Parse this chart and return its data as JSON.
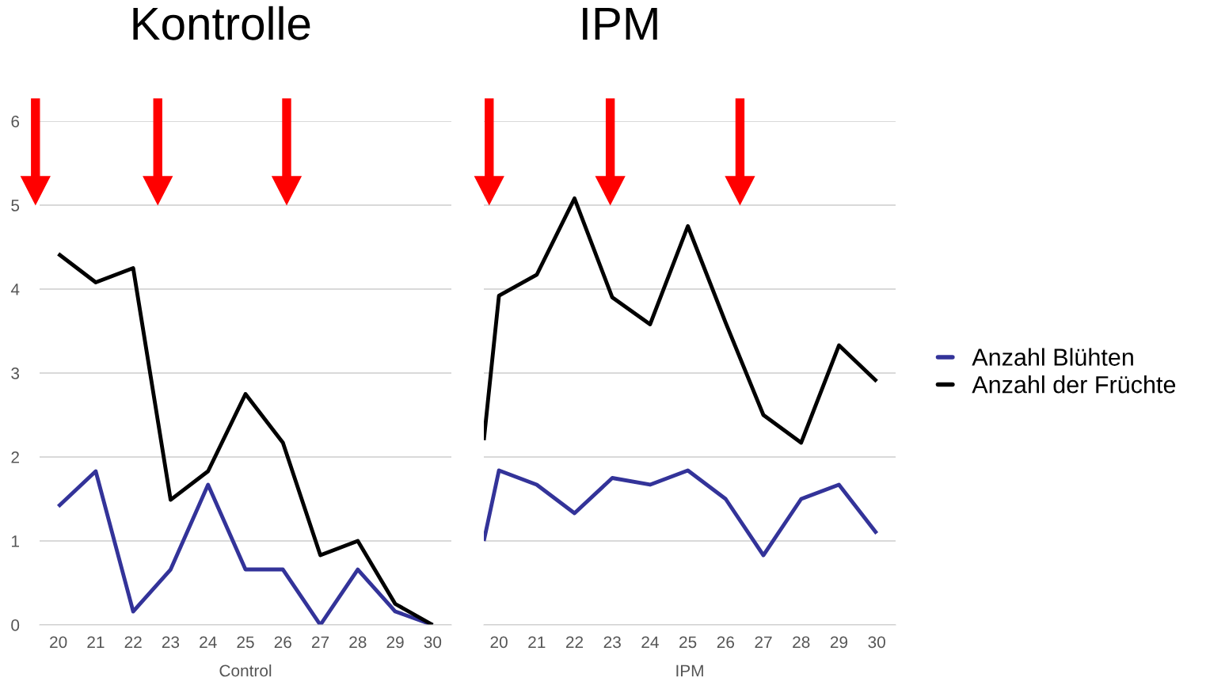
{
  "chart_data": [
    {
      "type": "line",
      "title": "Kontrolle",
      "xlabel": "Control",
      "xlim": [
        19.5,
        30.5
      ],
      "xticks": [
        20,
        21,
        22,
        23,
        24,
        25,
        26,
        27,
        28,
        29,
        30
      ],
      "ylim": [
        0,
        6
      ],
      "yticks": [
        0,
        1,
        2,
        3,
        4,
        5,
        6
      ],
      "grid": "y",
      "legend": false,
      "x": [
        20,
        21,
        22,
        23,
        24,
        25,
        26,
        27,
        28,
        29,
        30
      ],
      "series": [
        {
          "color": "#333399",
          "values": [
            1.41,
            1.83,
            0.16,
            0.66,
            1.67,
            0.66,
            0.66,
            0,
            0.66,
            0.16,
            0
          ]
        },
        {
          "color": "#000000",
          "values": [
            4.42,
            4.08,
            4.25,
            1.49,
            1.83,
            2.75,
            2.17,
            0.83,
            1.0,
            0.25,
            0
          ]
        }
      ]
    },
    {
      "type": "line",
      "title": "IPM",
      "xlabel": "IPM",
      "xlim": [
        19.6,
        30.5
      ],
      "xticks": [
        20,
        21,
        22,
        23,
        24,
        25,
        26,
        27,
        28,
        29,
        30
      ],
      "ylim": [
        0,
        6
      ],
      "yticks": [
        0,
        1,
        2,
        3,
        4,
        5,
        6
      ],
      "grid": "y",
      "legend": "right",
      "tick_labels": "x",
      "x": [
        19.6,
        20,
        21,
        22,
        23,
        24,
        25,
        26,
        27,
        28,
        29,
        30
      ],
      "series": [
        {
          "name": "Anzahl Blühten",
          "color": "#333399",
          "values": [
            1.0,
            1.84,
            1.67,
            1.33,
            1.75,
            1.67,
            1.84,
            1.5,
            0.83,
            1.5,
            1.67,
            1.09
          ]
        },
        {
          "name": "Anzahl der Früchte",
          "color": "#000000",
          "values": [
            2.2,
            3.92,
            4.17,
            5.08,
            3.9,
            3.58,
            4.75,
            3.6,
            2.5,
            2.17,
            3.33,
            2.9
          ]
        }
      ]
    }
  ]
}
